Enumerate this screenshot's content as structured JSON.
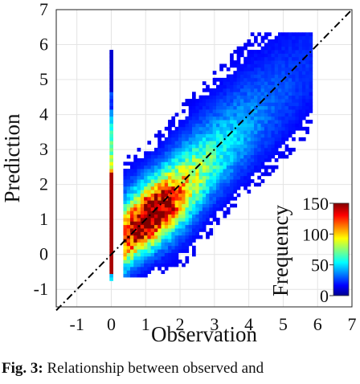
{
  "caption": {
    "label": "Fig. 3:",
    "text": "Relationship between observed and"
  },
  "chart_data": {
    "type": "heatmap",
    "xlabel": "Observation",
    "ylabel": "Prediction",
    "xlim": [
      -1.6,
      7
    ],
    "ylim": [
      -1.5,
      7
    ],
    "xticks": [
      "-1",
      "0",
      "1",
      "2",
      "3",
      "4",
      "5",
      "6",
      "7"
    ],
    "yticks": [
      "-1",
      "0",
      "1",
      "2",
      "3",
      "4",
      "5",
      "6",
      "7"
    ],
    "grid": true,
    "reference_line": {
      "style": "dash-dot",
      "color": "#000000",
      "from": [
        -1.6,
        -1.6
      ],
      "to": [
        7,
        7
      ]
    },
    "density": {
      "bin_size": 0.1,
      "center_x": 1.0,
      "center_y": 0.95,
      "peak_frequency": 150,
      "obs_range": [
        0.4,
        5.8
      ],
      "notes": "2-D histogram of prediction vs observation; densest near observation 1, prediction 1"
    },
    "zero_column": {
      "x": 0,
      "y_range": [
        -0.75,
        5.75
      ],
      "dense_range": [
        -0.55,
        2.35
      ],
      "dense_frequency": 150
    },
    "colorbar": {
      "label": "Frequency",
      "ticks": [
        "0",
        "50",
        "100",
        "150"
      ],
      "range": [
        0,
        150
      ],
      "colormap": "jet",
      "placement": "bottom-right"
    }
  }
}
